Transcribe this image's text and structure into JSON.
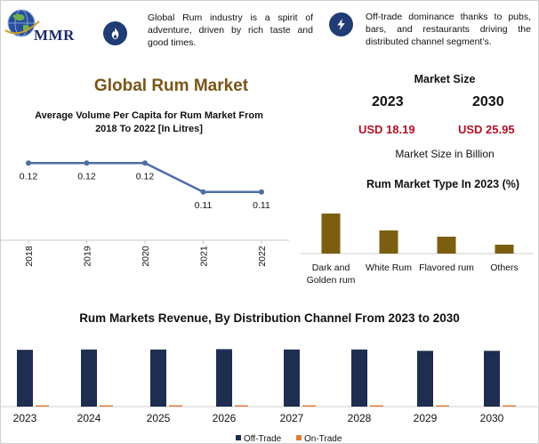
{
  "brand": {
    "name": "MMR"
  },
  "header": {
    "info1": "Global Rum industry is a spirit of adventure, driven by rich taste and good times.",
    "info2": "Off-trade dominance thanks to pubs, bars, and restaurants driving the distributed channel segment’s."
  },
  "main_title": "Global Rum Market",
  "market_size": {
    "title": "Market Size",
    "year1": "2023",
    "year2": "2030",
    "value1": "USD 18.19",
    "value2": "USD 25.95",
    "unit": "Market Size in Billion"
  },
  "colors": {
    "brown": "#7b5e10",
    "navy": "#1f2d51",
    "orange": "#e27d3a",
    "line": "#4b6fa5",
    "title_brown": "#7a5518",
    "red": "#b11226"
  },
  "icons": {
    "badge1": "fire-icon",
    "badge2": "lightning-icon",
    "logo": "globe-icon"
  },
  "chart_data": [
    {
      "type": "line",
      "title": "Average Volume Per Capita for Rum Market From 2018 To 2022 [In Litres]",
      "categories": [
        "2018",
        "2019",
        "2020",
        "2021",
        "2022"
      ],
      "values": [
        0.12,
        0.12,
        0.12,
        0.11,
        0.11
      ],
      "data_labels": [
        "0.12",
        "0.12",
        "0.12",
        "0.11",
        "0.11"
      ],
      "ylim": [
        0.105,
        0.125
      ],
      "grid": false
    },
    {
      "type": "bar",
      "title": "Rum Market Type In 2023 (%)",
      "categories": [
        "Dark and Golden rum",
        "White Rum",
        "Flavored rum",
        "Others"
      ],
      "values": [
        45,
        26,
        19,
        10
      ],
      "ylim": [
        0,
        50
      ],
      "grid": false
    },
    {
      "type": "bar",
      "title": "Rum Markets Revenue, By Distribution Channel From 2023 to 2030",
      "categories": [
        "2023",
        "2024",
        "2025",
        "2026",
        "2027",
        "2028",
        "2029",
        "2030"
      ],
      "series": [
        {
          "name": "Off-Trade",
          "values": [
            16.9,
            17.0,
            17.0,
            17.1,
            17.0,
            17.0,
            16.6,
            16.6
          ]
        },
        {
          "name": "On-Trade",
          "values": [
            0.25,
            0.25,
            0.25,
            0.25,
            0.25,
            0.25,
            0.3,
            0.3
          ]
        }
      ],
      "ylim": [
        0,
        18
      ],
      "legend": "bottom",
      "grid": false
    }
  ]
}
